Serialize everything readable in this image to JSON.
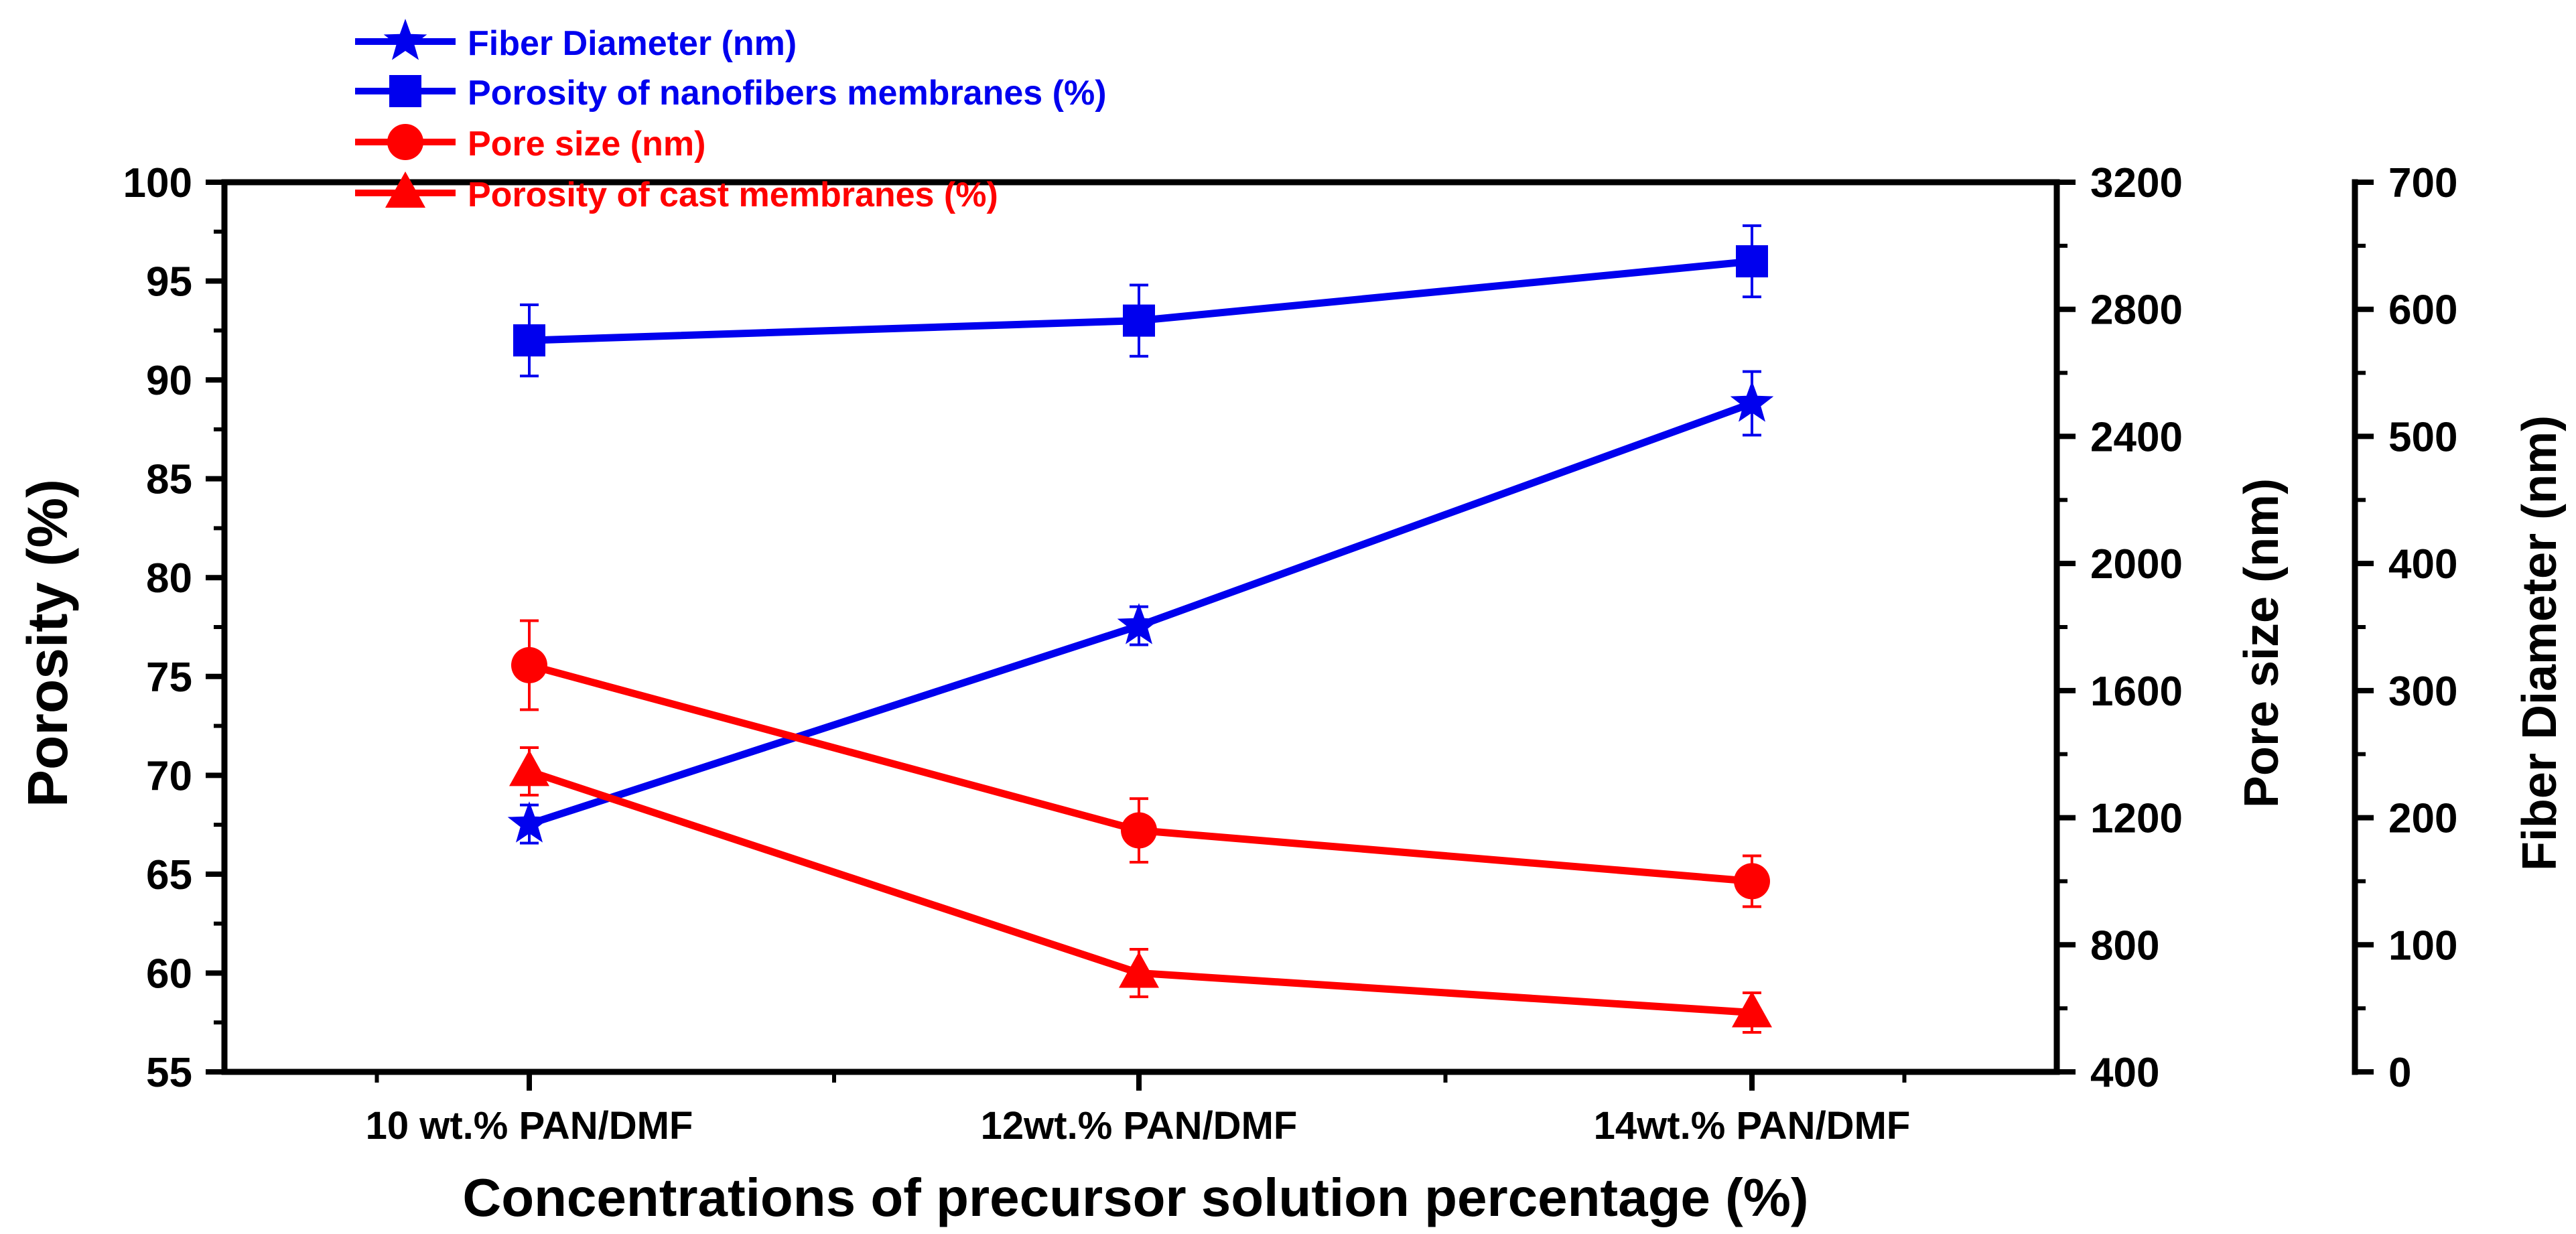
{
  "chart_data": {
    "type": "line",
    "categories": [
      "10 wt.% PAN/DMF",
      "12wt.% PAN/DMF",
      "14wt.% PAN/DMF"
    ],
    "xlabel": "Concentrations of precursor solution percentage (%)",
    "axes": {
      "left": {
        "label": "Porosity (%)",
        "ylim": [
          55,
          100
        ],
        "ticks": [
          "55",
          "60",
          "65",
          "70",
          "75",
          "80",
          "85",
          "90",
          "95",
          "100"
        ],
        "tick_values": [
          55,
          60,
          65,
          70,
          75,
          80,
          85,
          90,
          95,
          100
        ]
      },
      "right1": {
        "label": "Pore size (nm)",
        "ylim": [
          400,
          3200
        ],
        "ticks": [
          "400",
          "800",
          "1200",
          "1600",
          "2000",
          "2400",
          "2800",
          "3200"
        ],
        "tick_values": [
          400,
          800,
          1200,
          1600,
          2000,
          2400,
          2800,
          3200
        ]
      },
      "right2": {
        "label": "Fiber Diameter (nm)",
        "ylim": [
          0,
          700
        ],
        "ticks": [
          "0",
          "100",
          "200",
          "300",
          "400",
          "500",
          "600",
          "700"
        ],
        "tick_values": [
          0,
          100,
          200,
          300,
          400,
          500,
          600,
          700
        ]
      }
    },
    "series": [
      {
        "name": "Fiber Diameter (nm)",
        "axis": "right2",
        "color": "#0000ee",
        "marker": "star",
        "values": [
          195,
          351,
          526
        ],
        "errors": [
          15,
          15,
          25
        ]
      },
      {
        "name": "Porosity of nanofibers membranes (%)",
        "axis": "left",
        "color": "#0000ee",
        "marker": "square",
        "values": [
          92,
          93,
          96
        ],
        "errors": [
          1.8,
          1.8,
          1.8
        ]
      },
      {
        "name": "Pore size (nm)",
        "axis": "right1",
        "color": "#ff0000",
        "marker": "circle",
        "values": [
          1680,
          1160,
          1000
        ],
        "errors": [
          140,
          100,
          80
        ]
      },
      {
        "name": "Porosity of cast membranes (%)",
        "axis": "left",
        "color": "#ff0000",
        "marker": "triangle",
        "values": [
          70.2,
          60.0,
          58.0
        ],
        "errors": [
          1.2,
          1.2,
          1.0
        ]
      }
    ],
    "legend_position": "top-left"
  }
}
